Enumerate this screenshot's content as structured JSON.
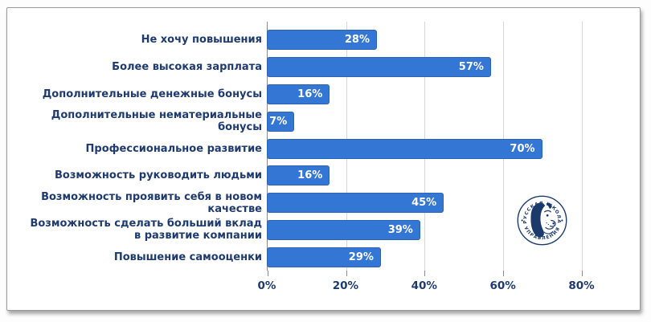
{
  "window": {
    "background_color": "#ffffff",
    "card_border_color": "#9a9a9a"
  },
  "chart_data": {
    "type": "bar",
    "orientation": "horizontal",
    "title": "",
    "categories": [
      "Не хочу повышения",
      "Более высокая зарплата",
      "Дополнительные денежные бонусы",
      "Дополнительные нематериальные\nбонусы",
      "Профессиональное развитие",
      "Возможность руководить людьми",
      "Возможность проявить себя в новом\nкачестве",
      "Возможность сделать больший вклад\nв развитие компании",
      "Повышение самооценки"
    ],
    "values": [
      28,
      57,
      16,
      7,
      70,
      16,
      45,
      39,
      29
    ],
    "value_labels": [
      "28%",
      "57%",
      "16%",
      "7%",
      "70%",
      "16%",
      "45%",
      "39%",
      "29%"
    ],
    "x_ticks": [
      "0%",
      "20%",
      "40%",
      "60%",
      "80%"
    ],
    "x_tick_values": [
      0,
      20,
      40,
      60,
      80
    ],
    "xlim": [
      0,
      94
    ],
    "grid": true,
    "legend": false,
    "colors": {
      "bar": "#3376d4",
      "bar_border": "#2d62b5",
      "value_text": "#ffffff",
      "label": "#1e3a6e",
      "grid": "#d6d6d6",
      "axis": "#8a8a8a"
    }
  },
  "logo": {
    "name": "russian-school-of-management-stamp",
    "top_text": "РУССКАЯ ШКОЛА",
    "bottom_text": "УПРАВЛЕНИЯ",
    "color": "#1b3a6b"
  }
}
